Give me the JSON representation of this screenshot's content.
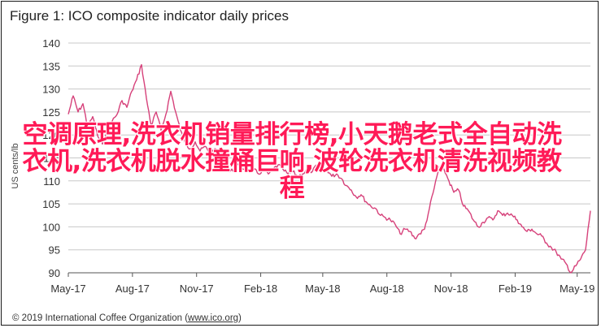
{
  "figure": {
    "title": "Figure 1: ICO composite indicator daily prices",
    "copyright_prefix": "© 2019 International Coffee Organization (",
    "copyright_link": "www.ico.org",
    "copyright_suffix": ")"
  },
  "overlay_text": "空调原理,洗衣机销量排行榜,小天鹅老式全自动洗衣机,洗衣机脱水撞桶巨响,波轮洗衣机清洗视频教程",
  "colors": {
    "line": "#d6417a",
    "overlay": "#ff1a57",
    "grid": "#c8c8c8"
  },
  "chart_data": {
    "type": "line",
    "title": "Figure 1: ICO composite indicator daily prices",
    "ylabel": "US cents/lb",
    "xlabel": "",
    "ylim": [
      90,
      140
    ],
    "yticks": [
      90,
      95,
      100,
      105,
      110,
      115,
      120,
      125,
      130,
      135,
      140
    ],
    "xticks": [
      "May-17",
      "Aug-17",
      "Nov-17",
      "Feb-18",
      "May-18",
      "Aug-18",
      "Nov-18",
      "Feb-19",
      "May-19"
    ],
    "xrange": [
      "2017-05-01",
      "2019-05-20"
    ],
    "grid": "horizontal",
    "series": [
      {
        "name": "",
        "points": [
          [
            "2017-05-01",
            124.5
          ],
          [
            "2017-05-08",
            128.5
          ],
          [
            "2017-05-15",
            125.0
          ],
          [
            "2017-05-22",
            126.8
          ],
          [
            "2017-05-29",
            121.5
          ],
          [
            "2017-06-05",
            124.0
          ],
          [
            "2017-06-12",
            119.8
          ],
          [
            "2017-06-19",
            118.0
          ],
          [
            "2017-06-26",
            121.5
          ],
          [
            "2017-07-03",
            123.0
          ],
          [
            "2017-07-10",
            124.5
          ],
          [
            "2017-07-17",
            127.5
          ],
          [
            "2017-07-24",
            126.0
          ],
          [
            "2017-07-31",
            129.5
          ],
          [
            "2017-08-07",
            132.0
          ],
          [
            "2017-08-14",
            135.3
          ],
          [
            "2017-08-21",
            128.0
          ],
          [
            "2017-08-28",
            122.0
          ],
          [
            "2017-09-04",
            125.0
          ],
          [
            "2017-09-11",
            121.0
          ],
          [
            "2017-09-18",
            124.5
          ],
          [
            "2017-09-25",
            129.5
          ],
          [
            "2017-10-02",
            125.0
          ],
          [
            "2017-10-09",
            121.0
          ],
          [
            "2017-10-16",
            118.0
          ],
          [
            "2017-10-23",
            117.0
          ],
          [
            "2017-10-30",
            118.5
          ],
          [
            "2017-11-06",
            116.5
          ],
          [
            "2017-11-13",
            117.5
          ],
          [
            "2017-11-20",
            116.0
          ],
          [
            "2017-11-27",
            117.0
          ],
          [
            "2017-12-04",
            115.0
          ],
          [
            "2017-12-11",
            113.0
          ],
          [
            "2017-12-18",
            112.0
          ],
          [
            "2017-12-25",
            112.5
          ],
          [
            "2018-01-01",
            113.5
          ],
          [
            "2018-01-08",
            112.5
          ],
          [
            "2018-01-15",
            113.5
          ],
          [
            "2018-01-22",
            112.5
          ],
          [
            "2018-01-29",
            111.5
          ],
          [
            "2018-02-05",
            112.5
          ],
          [
            "2018-02-12",
            111.5
          ],
          [
            "2018-02-19",
            112.5
          ],
          [
            "2018-02-26",
            113.5
          ],
          [
            "2018-03-05",
            112.5
          ],
          [
            "2018-03-12",
            111.5
          ],
          [
            "2018-03-19",
            112.0
          ],
          [
            "2018-03-26",
            111.0
          ],
          [
            "2018-04-02",
            111.5
          ],
          [
            "2018-04-09",
            112.5
          ],
          [
            "2018-04-16",
            112.0
          ],
          [
            "2018-04-23",
            113.5
          ],
          [
            "2018-04-30",
            112.0
          ],
          [
            "2018-05-07",
            112.5
          ],
          [
            "2018-05-14",
            111.0
          ],
          [
            "2018-05-21",
            111.5
          ],
          [
            "2018-05-28",
            110.5
          ],
          [
            "2018-06-04",
            109.0
          ],
          [
            "2018-06-11",
            108.0
          ],
          [
            "2018-06-18",
            106.5
          ],
          [
            "2018-06-25",
            107.0
          ],
          [
            "2018-07-02",
            105.5
          ],
          [
            "2018-07-09",
            104.5
          ],
          [
            "2018-07-16",
            104.0
          ],
          [
            "2018-07-23",
            102.5
          ],
          [
            "2018-07-30",
            102.0
          ],
          [
            "2018-08-06",
            101.5
          ],
          [
            "2018-08-13",
            100.5
          ],
          [
            "2018-08-20",
            98.5
          ],
          [
            "2018-08-27",
            99.5
          ],
          [
            "2018-09-03",
            99.0
          ],
          [
            "2018-09-10",
            97.5
          ],
          [
            "2018-09-17",
            98.5
          ],
          [
            "2018-09-24",
            99.5
          ],
          [
            "2018-10-01",
            104.0
          ],
          [
            "2018-10-08",
            108.5
          ],
          [
            "2018-10-15",
            113.0
          ],
          [
            "2018-10-22",
            112.5
          ],
          [
            "2018-10-29",
            110.0
          ],
          [
            "2018-11-05",
            107.5
          ],
          [
            "2018-11-12",
            108.0
          ],
          [
            "2018-11-19",
            104.5
          ],
          [
            "2018-11-26",
            103.5
          ],
          [
            "2018-12-03",
            101.5
          ],
          [
            "2018-12-10",
            100.0
          ],
          [
            "2018-12-17",
            101.0
          ],
          [
            "2018-12-24",
            102.0
          ],
          [
            "2018-12-31",
            101.5
          ],
          [
            "2019-01-07",
            103.5
          ],
          [
            "2019-01-14",
            102.5
          ],
          [
            "2019-01-21",
            103.0
          ],
          [
            "2019-01-28",
            102.5
          ],
          [
            "2019-02-04",
            101.5
          ],
          [
            "2019-02-11",
            100.0
          ],
          [
            "2019-02-18",
            99.0
          ],
          [
            "2019-02-25",
            99.5
          ],
          [
            "2019-03-04",
            98.5
          ],
          [
            "2019-03-11",
            98.0
          ],
          [
            "2019-03-18",
            96.5
          ],
          [
            "2019-03-25",
            95.5
          ],
          [
            "2019-04-01",
            94.5
          ],
          [
            "2019-04-08",
            93.0
          ],
          [
            "2019-04-15",
            92.0
          ],
          [
            "2019-04-22",
            90.0
          ],
          [
            "2019-04-29",
            91.5
          ],
          [
            "2019-05-06",
            93.0
          ],
          [
            "2019-05-13",
            95.0
          ],
          [
            "2019-05-20",
            103.5
          ]
        ]
      }
    ]
  }
}
